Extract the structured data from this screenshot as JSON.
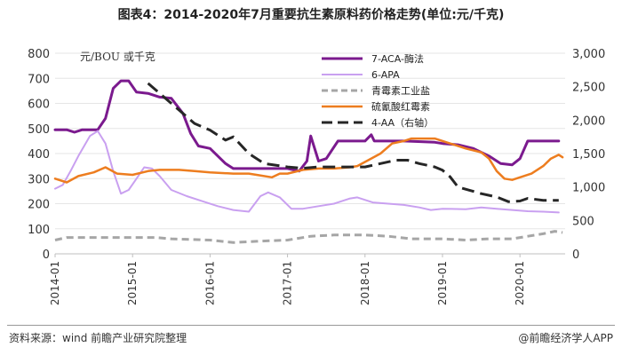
{
  "title": "图表4：2014-2020年7月重要抗生素原料药价格走势(单位:元/千克)",
  "footer": {
    "source": "资料来源：wind 前瞻产业研究院整理",
    "credit": "@前瞻经济学人APP"
  },
  "chart_data": {
    "type": "line",
    "unit_label": "元/BOU 或千克",
    "x_ticks": [
      "2014-01",
      "2015-01",
      "2016-01",
      "2017-01",
      "2018-01",
      "2019-01",
      "2020-01"
    ],
    "x_range": [
      2014.0,
      2020.583
    ],
    "y_left": {
      "range": [
        0,
        800
      ],
      "ticks": [
        "0",
        "100",
        "200",
        "300",
        "400",
        "500",
        "600",
        "700",
        "800"
      ]
    },
    "y_right": {
      "range": [
        0,
        3000
      ],
      "ticks": [
        "0",
        "500",
        "1,000",
        "1,500",
        "2,000",
        "2,500",
        "3,000"
      ]
    },
    "legend_position": "top-right",
    "series": [
      {
        "name": "7-ACA-酶法",
        "axis": "left",
        "color": "#7B1A8E",
        "style": "solid",
        "width": 3,
        "points": [
          [
            2014.0,
            495
          ],
          [
            2014.15,
            495
          ],
          [
            2014.25,
            485
          ],
          [
            2014.35,
            495
          ],
          [
            2014.55,
            495
          ],
          [
            2014.65,
            540
          ],
          [
            2014.75,
            660
          ],
          [
            2014.85,
            690
          ],
          [
            2014.95,
            690
          ],
          [
            2015.05,
            645
          ],
          [
            2015.2,
            640
          ],
          [
            2015.35,
            625
          ],
          [
            2015.5,
            620
          ],
          [
            2015.65,
            560
          ],
          [
            2015.75,
            480
          ],
          [
            2015.85,
            430
          ],
          [
            2016.0,
            420
          ],
          [
            2016.1,
            390
          ],
          [
            2016.2,
            360
          ],
          [
            2016.3,
            340
          ],
          [
            2016.6,
            340
          ],
          [
            2016.8,
            340
          ],
          [
            2017.0,
            340
          ],
          [
            2017.15,
            330
          ],
          [
            2017.25,
            370
          ],
          [
            2017.3,
            470
          ],
          [
            2017.4,
            370
          ],
          [
            2017.5,
            380
          ],
          [
            2017.65,
            450
          ],
          [
            2018.0,
            450
          ],
          [
            2018.08,
            475
          ],
          [
            2018.12,
            450
          ],
          [
            2018.5,
            450
          ],
          [
            2018.9,
            445
          ],
          [
            2019.0,
            440
          ],
          [
            2019.2,
            435
          ],
          [
            2019.4,
            420
          ],
          [
            2019.6,
            390
          ],
          [
            2019.75,
            360
          ],
          [
            2019.9,
            355
          ],
          [
            2020.0,
            380
          ],
          [
            2020.1,
            450
          ],
          [
            2020.3,
            450
          ],
          [
            2020.5,
            450
          ]
        ]
      },
      {
        "name": "6-APA",
        "axis": "left",
        "color": "#C9A0F0",
        "style": "solid",
        "width": 2,
        "points": [
          [
            2014.0,
            260
          ],
          [
            2014.1,
            275
          ],
          [
            2014.2,
            330
          ],
          [
            2014.3,
            390
          ],
          [
            2014.45,
            470
          ],
          [
            2014.55,
            490
          ],
          [
            2014.65,
            440
          ],
          [
            2014.75,
            330
          ],
          [
            2014.85,
            240
          ],
          [
            2014.95,
            255
          ],
          [
            2015.05,
            300
          ],
          [
            2015.15,
            345
          ],
          [
            2015.25,
            340
          ],
          [
            2015.35,
            310
          ],
          [
            2015.5,
            255
          ],
          [
            2015.7,
            230
          ],
          [
            2015.9,
            210
          ],
          [
            2016.1,
            190
          ],
          [
            2016.3,
            175
          ],
          [
            2016.5,
            168
          ],
          [
            2016.65,
            230
          ],
          [
            2016.75,
            245
          ],
          [
            2016.9,
            225
          ],
          [
            2017.05,
            180
          ],
          [
            2017.2,
            180
          ],
          [
            2017.4,
            190
          ],
          [
            2017.6,
            200
          ],
          [
            2017.8,
            220
          ],
          [
            2017.9,
            225
          ],
          [
            2018.1,
            205
          ],
          [
            2018.3,
            200
          ],
          [
            2018.5,
            195
          ],
          [
            2018.7,
            185
          ],
          [
            2018.85,
            175
          ],
          [
            2019.0,
            180
          ],
          [
            2019.3,
            178
          ],
          [
            2019.5,
            185
          ],
          [
            2019.7,
            180
          ],
          [
            2019.9,
            175
          ],
          [
            2020.1,
            170
          ],
          [
            2020.3,
            168
          ],
          [
            2020.5,
            165
          ]
        ]
      },
      {
        "name": "青霉素工业盐",
        "axis": "left",
        "color": "#A6A6A6",
        "style": "dashed",
        "width": 3,
        "points": [
          [
            2014.0,
            55
          ],
          [
            2014.15,
            65
          ],
          [
            2014.5,
            65
          ],
          [
            2015.0,
            65
          ],
          [
            2015.3,
            65
          ],
          [
            2015.5,
            60
          ],
          [
            2016.0,
            55
          ],
          [
            2016.3,
            45
          ],
          [
            2016.6,
            50
          ],
          [
            2017.0,
            55
          ],
          [
            2017.3,
            70
          ],
          [
            2017.6,
            75
          ],
          [
            2018.0,
            75
          ],
          [
            2018.3,
            70
          ],
          [
            2018.6,
            60
          ],
          [
            2019.0,
            60
          ],
          [
            2019.3,
            55
          ],
          [
            2019.6,
            60
          ],
          [
            2019.9,
            60
          ],
          [
            2020.1,
            70
          ],
          [
            2020.3,
            80
          ],
          [
            2020.45,
            90
          ],
          [
            2020.55,
            85
          ]
        ]
      },
      {
        "name": "硫氰酸红霉素",
        "axis": "left",
        "color": "#ED7D1F",
        "style": "solid",
        "width": 2.5,
        "points": [
          [
            2014.0,
            300
          ],
          [
            2014.15,
            285
          ],
          [
            2014.3,
            310
          ],
          [
            2014.5,
            325
          ],
          [
            2014.65,
            345
          ],
          [
            2014.8,
            320
          ],
          [
            2015.0,
            315
          ],
          [
            2015.2,
            330
          ],
          [
            2015.35,
            335
          ],
          [
            2015.6,
            335
          ],
          [
            2015.8,
            330
          ],
          [
            2016.0,
            325
          ],
          [
            2016.3,
            320
          ],
          [
            2016.5,
            320
          ],
          [
            2016.6,
            315
          ],
          [
            2016.8,
            305
          ],
          [
            2016.9,
            320
          ],
          [
            2017.0,
            320
          ],
          [
            2017.2,
            335
          ],
          [
            2017.4,
            340
          ],
          [
            2017.6,
            340
          ],
          [
            2017.8,
            345
          ],
          [
            2017.9,
            350
          ],
          [
            2018.05,
            375
          ],
          [
            2018.2,
            400
          ],
          [
            2018.35,
            440
          ],
          [
            2018.5,
            450
          ],
          [
            2018.6,
            460
          ],
          [
            2018.8,
            460
          ],
          [
            2018.9,
            460
          ],
          [
            2019.1,
            440
          ],
          [
            2019.3,
            420
          ],
          [
            2019.5,
            405
          ],
          [
            2019.6,
            380
          ],
          [
            2019.7,
            330
          ],
          [
            2019.8,
            300
          ],
          [
            2019.9,
            295
          ],
          [
            2020.0,
            305
          ],
          [
            2020.15,
            320
          ],
          [
            2020.3,
            350
          ],
          [
            2020.4,
            380
          ],
          [
            2020.5,
            395
          ],
          [
            2020.55,
            385
          ]
        ]
      },
      {
        "name": "4-AA（右轴）",
        "axis": "right",
        "color": "#262626",
        "style": "dashed",
        "width": 3,
        "points": [
          [
            2015.2,
            2550
          ],
          [
            2015.4,
            2350
          ],
          [
            2015.6,
            2150
          ],
          [
            2015.8,
            1950
          ],
          [
            2016.0,
            1850
          ],
          [
            2016.2,
            1700
          ],
          [
            2016.3,
            1750
          ],
          [
            2016.5,
            1500
          ],
          [
            2016.7,
            1350
          ],
          [
            2017.0,
            1300
          ],
          [
            2017.2,
            1280
          ],
          [
            2017.4,
            1300
          ],
          [
            2017.6,
            1300
          ],
          [
            2017.8,
            1300
          ],
          [
            2018.0,
            1300
          ],
          [
            2018.2,
            1350
          ],
          [
            2018.4,
            1400
          ],
          [
            2018.55,
            1400
          ],
          [
            2018.7,
            1350
          ],
          [
            2018.9,
            1300
          ],
          [
            2019.0,
            1250
          ],
          [
            2019.1,
            1150
          ],
          [
            2019.2,
            1000
          ],
          [
            2019.35,
            950
          ],
          [
            2019.5,
            900
          ],
          [
            2019.7,
            850
          ],
          [
            2019.85,
            780
          ],
          [
            2020.0,
            790
          ],
          [
            2020.1,
            830
          ],
          [
            2020.3,
            800
          ],
          [
            2020.5,
            800
          ]
        ]
      }
    ]
  }
}
